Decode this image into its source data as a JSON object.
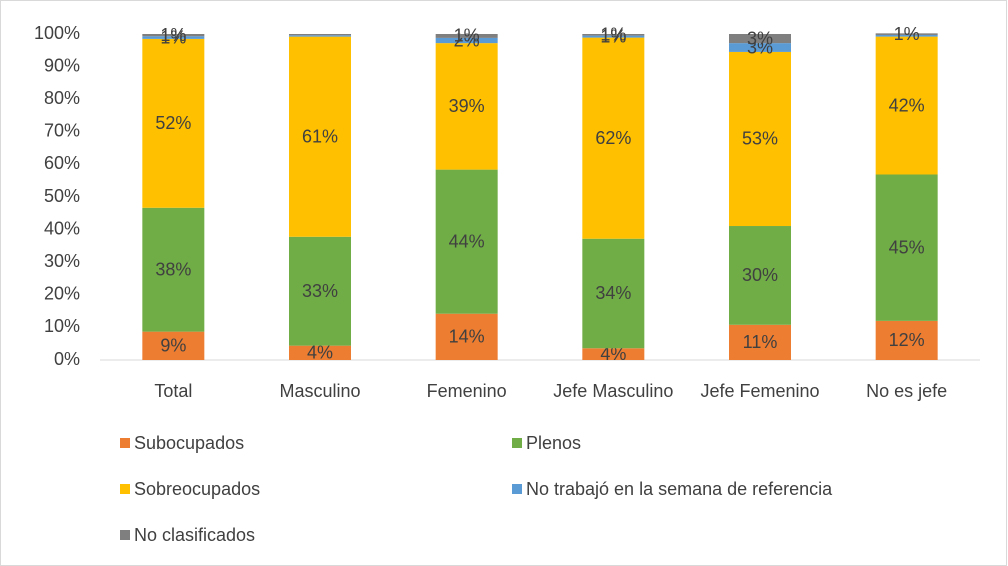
{
  "chart_data": {
    "type": "stacked_bar",
    "categories": [
      "Total",
      "Masculino",
      "Femenino",
      "Jefe Masculino",
      "Jefe Femenino",
      "No es jefe"
    ],
    "series": [
      {
        "name": "Subocupados",
        "color": "#ED7D31",
        "values": [
          8.7,
          4.4,
          14.2,
          3.6,
          10.8,
          12.0
        ],
        "value_labels": [
          "9%",
          "4%",
          "14%",
          "4%",
          "11%",
          "12%"
        ]
      },
      {
        "name": "Plenos",
        "color": "#70AD47",
        "values": [
          38.0,
          33.4,
          44.2,
          33.6,
          30.3,
          44.9
        ],
        "value_labels": [
          "38%",
          "33%",
          "44%",
          "34%",
          "30%",
          "45%"
        ]
      },
      {
        "name": "Sobreocupados",
        "color": "#FFC000",
        "values": [
          51.8,
          61.4,
          38.8,
          61.7,
          53.4,
          42.3
        ],
        "value_labels": [
          "52%",
          "61%",
          "39%",
          "62%",
          "53%",
          "42%"
        ]
      },
      {
        "name": "No trabajó en la semana de referencia",
        "color": "#5B9BD5",
        "values": [
          0.8,
          0.4,
          1.6,
          0.6,
          2.7,
          0.5
        ],
        "value_labels": [
          "1%",
          null,
          "2%",
          "1%",
          "3%",
          null
        ]
      },
      {
        "name": "No clasificados",
        "color": "#7F7F7F",
        "values": [
          0.7,
          0.4,
          1.2,
          0.5,
          2.8,
          0.5
        ],
        "value_labels": [
          "1%",
          null,
          "1%",
          "1%",
          "3%",
          "1%"
        ]
      }
    ],
    "ylim": [
      0,
      100
    ],
    "yticks": [
      {
        "value": 0,
        "label": "0%"
      },
      {
        "value": 10,
        "label": "10%"
      },
      {
        "value": 20,
        "label": "20%"
      },
      {
        "value": 30,
        "label": "30%"
      },
      {
        "value": 40,
        "label": "40%"
      },
      {
        "value": 50,
        "label": "50%"
      },
      {
        "value": 60,
        "label": "60%"
      },
      {
        "value": 70,
        "label": "70%"
      },
      {
        "value": 80,
        "label": "80%"
      },
      {
        "value": 90,
        "label": "90%"
      },
      {
        "value": 100,
        "label": "100%"
      }
    ],
    "legend": "bottom"
  }
}
